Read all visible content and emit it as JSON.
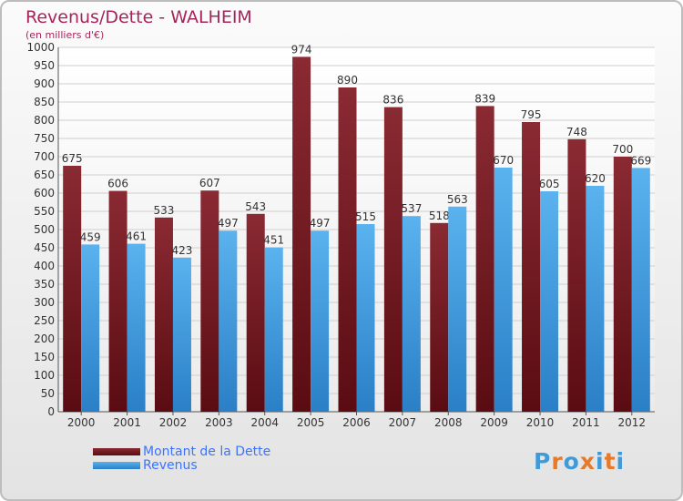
{
  "chart_data": {
    "type": "bar",
    "title": "Revenus/Dette - WALHEIM",
    "subtitle": "(en milliers d'€)",
    "categories": [
      "2000",
      "2001",
      "2002",
      "2003",
      "2004",
      "2005",
      "2006",
      "2007",
      "2008",
      "2009",
      "2010",
      "2011",
      "2012"
    ],
    "series": [
      {
        "name": "Montant de la Dette",
        "values": [
          675,
          606,
          533,
          607,
          543,
          974,
          890,
          836,
          518,
          839,
          795,
          748,
          700
        ],
        "color": "#7a1a22"
      },
      {
        "name": "Revenus",
        "values": [
          459,
          461,
          423,
          497,
          451,
          497,
          515,
          537,
          563,
          670,
          605,
          620,
          669
        ],
        "color": "#4aa3e6"
      }
    ],
    "ylim": [
      0,
      1000
    ],
    "ystep": 50,
    "grid": true,
    "legend_position": "bottom-left"
  },
  "logo": {
    "text": "Proxiti",
    "colors": [
      "#3f9ad8",
      "#e7792a",
      "#3f9ad8",
      "#e7792a",
      "#3f9ad8",
      "#e7792a",
      "#3f9ad8"
    ]
  }
}
